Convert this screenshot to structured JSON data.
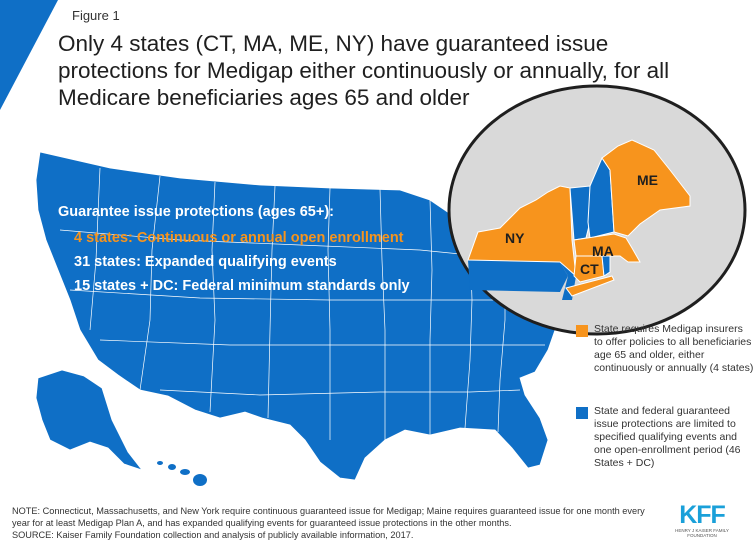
{
  "figure_label": "Figure 1",
  "title": "Only 4 states (CT, MA, ME, NY) have guaranteed issue protections for Medigap either continuously or annually, for all Medicare beneficiaries ages 65 and older",
  "colors": {
    "blue": "#0f6fc6",
    "orange": "#f7941d",
    "inset_bg": "#d9d9d9",
    "state_border": "#ffffff"
  },
  "chart_data": {
    "type": "choropleth map",
    "summary_heading": "Guarantee issue protections (ages 65+):",
    "summary_rows": [
      {
        "text": "4 states: Continuous or annual open enrollment",
        "color": "orange"
      },
      {
        "text": "31 states: Expanded qualifying events",
        "color": "white"
      },
      {
        "text": "15 states + DC: Federal minimum standards only",
        "color": "white"
      }
    ],
    "categories": [
      {
        "name": "State requires Medigap insurers to offer policies to all beneficiaries age 65 and older, either continuously or annually (4 states)",
        "color": "#f7941d",
        "states": [
          "CT",
          "MA",
          "ME",
          "NY"
        ]
      },
      {
        "name": "State and federal guaranteed issue protections are limited to specified qualifying events and one open-enrollment period (46 States + DC)",
        "color": "#0f6fc6",
        "states": [
          "all other states + DC"
        ]
      }
    ],
    "inset_labels": [
      "NY",
      "ME",
      "MA",
      "CT"
    ]
  },
  "notes": "NOTE: Connecticut, Massachusetts, and New York require continuous guaranteed issue for Medigap; Maine requires guaranteed issue for one month every year for at least Medigap Plan A, and has expanded qualifying events for guaranteed issue protections in the other months.",
  "source": "SOURCE: Kaiser Family Foundation collection and analysis of publicly available information, 2017.",
  "logo": {
    "big": "KFF",
    "small": "HENRY J KAISER FAMILY FOUNDATION"
  }
}
